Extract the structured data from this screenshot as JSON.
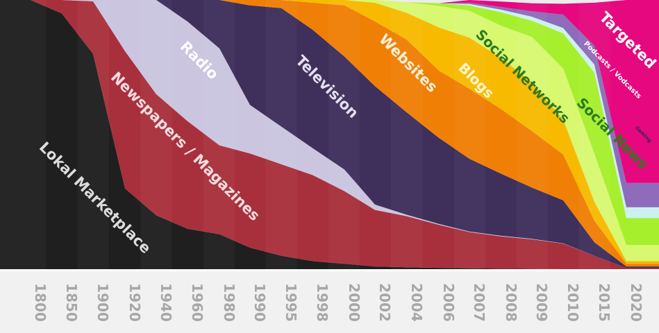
{
  "chart_data": {
    "type": "area",
    "stacked": true,
    "normalized": true,
    "ylim": [
      0,
      100
    ],
    "grid": false,
    "legend": "none",
    "categories": [
      "1800",
      "1850",
      "1900",
      "1920",
      "1940",
      "1960",
      "1980",
      "1990",
      "1995",
      "1998",
      "2000",
      "2002",
      "2004",
      "2006",
      "2007",
      "2008",
      "2009",
      "2010",
      "2015",
      "2020"
    ],
    "series": [
      {
        "name": "Lokal Marketplace",
        "color": "#1f1f1f",
        "label_color": "#dcdcdc",
        "values": [
          100,
          95,
          80,
          30,
          20,
          15,
          13,
          8,
          5,
          3,
          2,
          1,
          0.7,
          0.5,
          0.3,
          0.2,
          0.1,
          0,
          0,
          0
        ]
      },
      {
        "name": "Newspapers / Magazines",
        "color": "#a8303d",
        "label_color": "#f4dde0",
        "values": [
          0,
          5,
          19.5,
          51,
          45,
          40,
          33,
          35,
          34,
          32,
          27,
          21,
          19,
          16,
          13.5,
          12,
          11,
          9.5,
          5,
          0.5
        ]
      },
      {
        "name": "Radio",
        "color": "#cbc5df",
        "label_color": "#ffffff",
        "values": [
          0,
          0,
          0.5,
          19,
          35,
          37,
          36,
          18,
          14,
          10,
          8,
          2,
          0.5,
          0.3,
          0.2,
          0.2,
          0.2,
          0.1,
          0,
          0
        ]
      },
      {
        "name": "Television",
        "color": "#3e2f5b",
        "label_color": "#e4e0ef",
        "values": [
          0,
          0,
          0,
          0,
          0,
          8,
          18,
          37,
          44,
          44,
          42,
          44,
          38,
          32,
          27,
          23,
          19,
          16,
          5,
          0.5
        ]
      },
      {
        "name": "Websites",
        "color": "#f07f05",
        "label_color": "#fff0d8",
        "values": [
          0,
          0,
          0,
          0,
          0,
          0,
          0,
          2,
          3,
          10,
          19,
          24,
          27,
          25,
          26,
          24,
          21,
          17,
          8,
          1
        ]
      },
      {
        "name": "Blogs",
        "color": "#f7ba00",
        "label_color": "#fff6d0",
        "values": [
          0,
          0,
          0,
          0,
          0,
          0,
          0,
          0,
          0,
          1,
          2,
          7,
          10,
          16,
          19,
          19,
          18,
          13,
          7,
          1
        ]
      },
      {
        "name": "Social Networks",
        "color": "#d8f870",
        "label_color": "#2d7a1e",
        "values": [
          0,
          0,
          0,
          0,
          0,
          0,
          0,
          0,
          0,
          0,
          0,
          1,
          4,
          8,
          10,
          12,
          17,
          19,
          18,
          6
        ]
      },
      {
        "name": "Social News",
        "color": "#a6ef2d",
        "label_color": "#2d7a1e",
        "values": [
          0,
          0,
          0,
          0,
          0,
          0,
          0,
          0,
          0,
          0,
          0,
          0,
          0,
          1,
          2,
          5,
          6,
          13,
          30,
          10
        ]
      },
      {
        "name": "Gaming",
        "color": "#cdf1ee",
        "label_color": "#2e2458",
        "values": [
          0,
          0,
          0,
          0,
          0,
          0,
          0,
          0,
          0,
          0,
          0,
          0,
          0,
          0,
          0.5,
          1,
          1.5,
          2,
          3,
          4
        ]
      },
      {
        "name": "Podcasts / Vodcasts",
        "color": "#8f6cbb",
        "label_color": "#ffffff",
        "values": [
          0,
          0,
          0,
          0,
          0,
          0,
          0,
          0,
          0,
          0,
          0,
          0,
          0,
          0,
          0.5,
          1,
          2,
          5,
          7,
          9
        ]
      },
      {
        "name": "Targeted",
        "color": "#e5087e",
        "label_color": "#ffffff",
        "values": [
          0,
          0,
          0,
          0,
          0,
          0,
          0,
          0,
          0,
          0,
          0,
          0,
          0,
          0,
          1,
          2,
          3,
          4,
          16,
          68
        ]
      }
    ],
    "remainder_color": "#ececec"
  }
}
